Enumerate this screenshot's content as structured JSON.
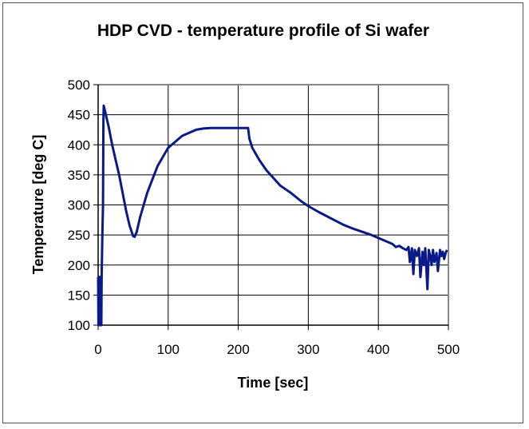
{
  "chart_data": {
    "type": "line",
    "title": "HDP CVD - temperature profile of Si wafer",
    "xlabel": "Time [sec]",
    "ylabel": "Temperature [deg C]",
    "xlim": [
      0,
      500
    ],
    "ylim": [
      100,
      500
    ],
    "xticks": [
      0,
      100,
      200,
      300,
      400,
      500
    ],
    "yticks": [
      100,
      150,
      200,
      250,
      300,
      350,
      400,
      450,
      500
    ],
    "grid": true,
    "legend": "none",
    "line_color": "#0a1a8a",
    "series": [
      {
        "x": [
          0,
          0.5,
          1,
          1.5,
          2,
          2.5,
          3,
          3.5,
          4,
          4.5,
          5,
          6,
          7,
          7.5,
          8,
          10,
          15,
          20,
          25,
          30,
          35,
          40,
          45,
          50,
          52,
          55,
          60,
          65,
          70,
          75,
          80,
          85,
          90,
          95,
          100,
          110,
          120,
          130,
          140,
          150,
          160,
          180,
          200,
          214,
          216,
          220,
          230,
          240,
          250,
          260,
          275,
          290,
          300,
          315,
          325,
          340,
          350,
          365,
          375,
          390,
          400,
          410,
          420,
          425,
          430,
          435,
          440,
          443,
          445,
          448,
          450,
          452,
          455,
          458,
          460,
          463,
          465,
          467,
          470,
          472,
          474,
          476,
          478,
          480,
          483,
          485,
          488,
          490,
          492,
          494,
          496,
          498
        ],
        "y": [
          180,
          100,
          180,
          100,
          180,
          100,
          180,
          100,
          180,
          100,
          180,
          250,
          300,
          440,
          465,
          455,
          430,
          400,
          375,
          350,
          320,
          290,
          265,
          248,
          247,
          255,
          280,
          300,
          320,
          335,
          350,
          365,
          375,
          385,
          395,
          405,
          415,
          420,
          425,
          427,
          428,
          428,
          428,
          428,
          410,
          395,
          375,
          358,
          345,
          332,
          320,
          306,
          298,
          288,
          282,
          273,
          267,
          260,
          256,
          250,
          245,
          240,
          235,
          230,
          232,
          228,
          225,
          230,
          205,
          228,
          185,
          225,
          215,
          228,
          180,
          222,
          200,
          228,
          160,
          225,
          215,
          200,
          225,
          205,
          220,
          190,
          225,
          215,
          222,
          210,
          220,
          225
        ]
      }
    ]
  }
}
